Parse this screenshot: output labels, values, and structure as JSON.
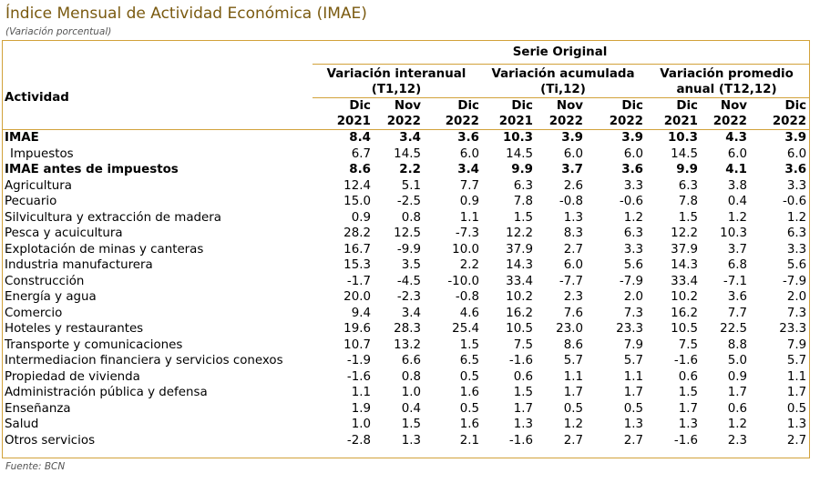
{
  "title": "Índice Mensual de Actividad Económica (IMAE)",
  "subtitle": "(Variación porcentual)",
  "serie": "Serie Original",
  "activity_header": "Actividad",
  "groups": [
    {
      "line1": "Variación interanual",
      "line2": "(T1,12)"
    },
    {
      "line1": "Variación acumulada",
      "line2": "(Ti,12)"
    },
    {
      "line1": "Variación promedio",
      "line2": "anual (T12,12)"
    }
  ],
  "periods": [
    {
      "month": "Dic",
      "year": "2021"
    },
    {
      "month": "Nov",
      "year": "2022"
    },
    {
      "month": "Dic",
      "year": "2022"
    },
    {
      "month": "Dic",
      "year": "2021"
    },
    {
      "month": "Nov",
      "year": "2022"
    },
    {
      "month": "Dic",
      "year": "2022"
    },
    {
      "month": "Dic",
      "year": "2021"
    },
    {
      "month": "Nov",
      "year": "2022"
    },
    {
      "month": "Dic",
      "year": "2022"
    }
  ],
  "rows": [
    {
      "label": "IMAE",
      "bold": true,
      "values": [
        "8.4",
        "3.4",
        "3.6",
        "10.3",
        "3.9",
        "3.9",
        "10.3",
        "4.3",
        "3.9"
      ]
    },
    {
      "label": "Impuestos",
      "indent": true,
      "values": [
        "6.7",
        "14.5",
        "6.0",
        "14.5",
        "6.0",
        "6.0",
        "14.5",
        "6.0",
        "6.0"
      ]
    },
    {
      "label": "IMAE antes de impuestos",
      "bold": true,
      "values": [
        "8.6",
        "2.2",
        "3.4",
        "9.9",
        "3.7",
        "3.6",
        "9.9",
        "4.1",
        "3.6"
      ]
    },
    {
      "label": "Agricultura",
      "values": [
        "12.4",
        "5.1",
        "7.7",
        "6.3",
        "2.6",
        "3.3",
        "6.3",
        "3.8",
        "3.3"
      ]
    },
    {
      "label": "Pecuario",
      "values": [
        "15.0",
        "-2.5",
        "0.9",
        "7.8",
        "-0.8",
        "-0.6",
        "7.8",
        "0.4",
        "-0.6"
      ]
    },
    {
      "label": "Silvicultura y extracción de madera",
      "values": [
        "0.9",
        "0.8",
        "1.1",
        "1.5",
        "1.3",
        "1.2",
        "1.5",
        "1.2",
        "1.2"
      ]
    },
    {
      "label": "Pesca y acuicultura",
      "values": [
        "28.2",
        "12.5",
        "-7.3",
        "12.2",
        "8.3",
        "6.3",
        "12.2",
        "10.3",
        "6.3"
      ]
    },
    {
      "label": "Explotación de minas y canteras",
      "values": [
        "16.7",
        "-9.9",
        "10.0",
        "37.9",
        "2.7",
        "3.3",
        "37.9",
        "3.7",
        "3.3"
      ]
    },
    {
      "label": "Industria manufacturera",
      "values": [
        "15.3",
        "3.5",
        "2.2",
        "14.3",
        "6.0",
        "5.6",
        "14.3",
        "6.8",
        "5.6"
      ]
    },
    {
      "label": "Construcción",
      "values": [
        "-1.7",
        "-4.5",
        "-10.0",
        "33.4",
        "-7.7",
        "-7.9",
        "33.4",
        "-7.1",
        "-7.9"
      ]
    },
    {
      "label": "Energía y agua",
      "values": [
        "20.0",
        "-2.3",
        "-0.8",
        "10.2",
        "2.3",
        "2.0",
        "10.2",
        "3.6",
        "2.0"
      ]
    },
    {
      "label": "Comercio",
      "values": [
        "9.4",
        "3.4",
        "4.6",
        "16.2",
        "7.6",
        "7.3",
        "16.2",
        "7.7",
        "7.3"
      ]
    },
    {
      "label": "Hoteles y restaurantes",
      "values": [
        "19.6",
        "28.3",
        "25.4",
        "10.5",
        "23.0",
        "23.3",
        "10.5",
        "22.5",
        "23.3"
      ]
    },
    {
      "label": "Transporte y comunicaciones",
      "values": [
        "10.7",
        "13.2",
        "1.5",
        "7.5",
        "8.6",
        "7.9",
        "7.5",
        "8.8",
        "7.9"
      ]
    },
    {
      "label": "Intermediacion financiera y servicios conexos",
      "values": [
        "-1.9",
        "6.6",
        "6.5",
        "-1.6",
        "5.7",
        "5.7",
        "-1.6",
        "5.0",
        "5.7"
      ]
    },
    {
      "label": "Propiedad de vivienda",
      "values": [
        "-1.6",
        "0.8",
        "0.5",
        "0.6",
        "1.1",
        "1.1",
        "0.6",
        "0.9",
        "1.1"
      ]
    },
    {
      "label": "Administración pública y defensa",
      "values": [
        "1.1",
        "1.0",
        "1.6",
        "1.5",
        "1.7",
        "1.7",
        "1.5",
        "1.7",
        "1.7"
      ]
    },
    {
      "label": "Enseñanza",
      "values": [
        "1.9",
        "0.4",
        "0.5",
        "1.7",
        "0.5",
        "0.5",
        "1.7",
        "0.6",
        "0.5"
      ]
    },
    {
      "label": "Salud",
      "values": [
        "1.0",
        "1.5",
        "1.6",
        "1.3",
        "1.2",
        "1.3",
        "1.3",
        "1.2",
        "1.3"
      ]
    },
    {
      "label": "Otros servicios",
      "values": [
        "-2.8",
        "1.3",
        "2.1",
        "-1.6",
        "2.7",
        "2.7",
        "-1.6",
        "2.3",
        "2.7"
      ]
    }
  ],
  "footer": "Fuente: BCN",
  "colors": {
    "accent": "#d2a23a",
    "title": "#7a5a10",
    "note": "#555555"
  }
}
